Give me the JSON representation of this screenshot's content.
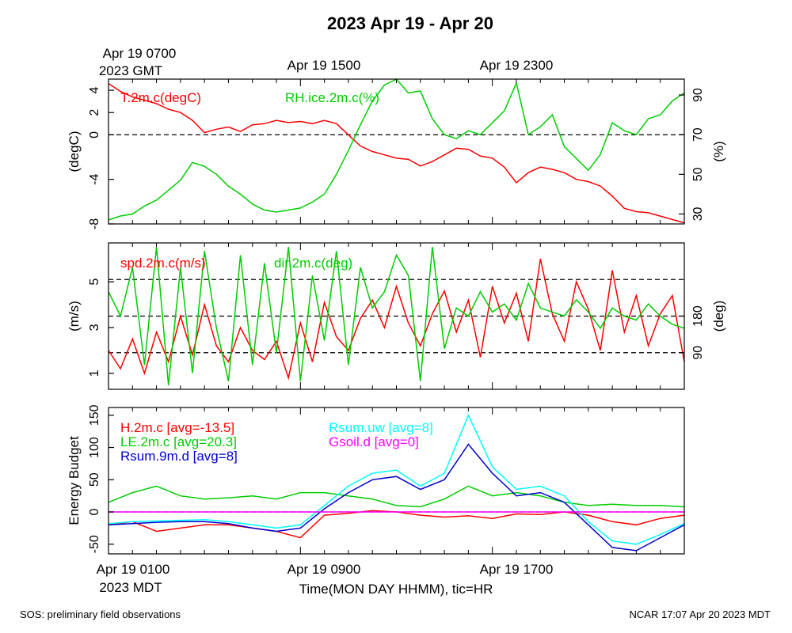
{
  "title": "2023 Apr 19 - Apr 20",
  "colors": {
    "red": "#ff0000",
    "green": "#00cc00",
    "blue": "#0000cc",
    "cyan": "#00ffff",
    "magenta": "#ff00ff"
  },
  "top_time_labels": {
    "first_line1": "Apr 19 0700",
    "first_line2": "2023 GMT",
    "second": "Apr 19 1500",
    "third": "Apr 19 2300"
  },
  "bottom_time_labels": {
    "first": "Apr 19 0100",
    "first_line2": "2023 MDT",
    "second": "Apr 19 0900",
    "third": "Apr 19 1700"
  },
  "xlabel": "Time(MON DAY HHMM), tic=HR",
  "footer": {
    "left": "SOS: preliminary field observations",
    "right": "NCAR 17:07 Apr 20 2023 MDT"
  },
  "chart_data": [
    {
      "type": "line",
      "panel": "temperature-humidity",
      "x_unit": "hours since Apr 19 0100 MDT",
      "xlim": [
        0,
        24
      ],
      "left_axis": {
        "label": "(degC)",
        "ticks": [
          "4",
          "2",
          "0",
          "-4",
          "-8"
        ],
        "tick_values": [
          4,
          2,
          0,
          -4,
          -8
        ],
        "ylim": [
          -8,
          5
        ]
      },
      "right_axis": {
        "label": "(%)",
        "ticks": [
          "90",
          "70",
          "50",
          "30"
        ],
        "tick_values": [
          90,
          70,
          50,
          30
        ],
        "ylim": [
          25,
          98
        ]
      },
      "reference_lines": [
        {
          "axis": "left",
          "value": 0
        }
      ],
      "series": [
        {
          "name": "T.2m.c(degC)",
          "axis": "left",
          "color": "red",
          "x": [
            0,
            0.5,
            1,
            1.5,
            2,
            2.5,
            3,
            3.5,
            4,
            4.5,
            5,
            5.5,
            6,
            6.5,
            7,
            7.5,
            8,
            8.5,
            9,
            9.5,
            10,
            10.5,
            11,
            11.5,
            12,
            12.5,
            13,
            13.5,
            14,
            14.5,
            15,
            15.5,
            16,
            16.5,
            17,
            17.5,
            18,
            18.5,
            19,
            19.5,
            20,
            20.5,
            21,
            21.5,
            22,
            22.5,
            23,
            23.5,
            24
          ],
          "values": [
            4.6,
            3.9,
            3.4,
            3.1,
            2.8,
            2.3,
            2.0,
            1.3,
            0.2,
            0.5,
            0.7,
            0.3,
            0.9,
            1.0,
            1.3,
            1.1,
            1.2,
            1.0,
            1.3,
            1.0,
            0.0,
            -1.0,
            -1.5,
            -1.8,
            -2.1,
            -2.2,
            -2.8,
            -2.4,
            -1.8,
            -1.2,
            -1.3,
            -1.9,
            -2.1,
            -2.9,
            -4.3,
            -3.4,
            -2.9,
            -3.1,
            -3.4,
            -4.0,
            -4.2,
            -4.6,
            -5.5,
            -6.6,
            -6.9,
            -7.0,
            -7.3,
            -7.6,
            -7.9
          ]
        },
        {
          "name": "RH.ice.2m.c(%)",
          "axis": "right",
          "color": "green",
          "x": [
            0,
            0.5,
            1,
            1.5,
            2,
            2.5,
            3,
            3.5,
            4,
            4.5,
            5,
            5.5,
            6,
            6.5,
            7,
            7.5,
            8,
            8.5,
            9,
            9.5,
            10,
            10.5,
            11,
            11.5,
            12,
            12.5,
            13,
            13.5,
            14,
            14.5,
            15,
            15.5,
            16,
            16.5,
            17,
            17.5,
            18,
            18.5,
            19,
            19.5,
            20,
            20.5,
            21,
            21.5,
            22,
            22.5,
            23,
            23.5,
            24
          ],
          "values": [
            27,
            29,
            30,
            34,
            37,
            42,
            47,
            56,
            54,
            50,
            44,
            40,
            35,
            32,
            31,
            32,
            33,
            36,
            40,
            50,
            62,
            75,
            87,
            95,
            98,
            91,
            92,
            78,
            70,
            68,
            72,
            70,
            76,
            82,
            96,
            70,
            74,
            80,
            64,
            58,
            52,
            60,
            76,
            72,
            70,
            78,
            80,
            87,
            91
          ]
        }
      ]
    },
    {
      "type": "line",
      "panel": "wind",
      "x_unit": "hours since Apr 19 0100 MDT",
      "xlim": [
        0,
        24
      ],
      "left_axis": {
        "label": "(m/s)",
        "ticks": [
          "5",
          "3",
          "1"
        ],
        "tick_values": [
          5,
          3,
          1
        ],
        "ylim": [
          0.3,
          6.7
        ]
      },
      "right_axis": {
        "label": "(deg)",
        "ticks": [
          "180",
          "90"
        ],
        "tick_values": [
          180,
          90
        ],
        "ylim": [
          0,
          360
        ]
      },
      "reference_lines": [
        {
          "axis": "right",
          "value": 90
        },
        {
          "axis": "right",
          "value": 180
        },
        {
          "axis": "right",
          "value": 270
        }
      ],
      "series": [
        {
          "name": "spd.2m.c(m/s)",
          "axis": "left",
          "color": "red",
          "x": [
            0,
            0.5,
            1,
            1.5,
            2,
            2.5,
            3,
            3.5,
            4,
            4.5,
            5,
            5.5,
            6,
            6.5,
            7,
            7.5,
            8,
            8.5,
            9,
            9.5,
            10,
            10.5,
            11,
            11.5,
            12,
            12.5,
            13,
            13.5,
            14,
            14.5,
            15,
            15.5,
            16,
            16.5,
            17,
            17.5,
            18,
            18.5,
            19,
            19.5,
            20,
            20.5,
            21,
            21.5,
            22,
            22.5,
            23,
            23.5,
            24
          ],
          "values": [
            2.0,
            1.2,
            2.5,
            1.0,
            2.8,
            1.5,
            3.5,
            1.8,
            4.0,
            2.2,
            1.5,
            3.0,
            2.0,
            1.6,
            2.4,
            0.8,
            3.2,
            1.5,
            4.1,
            2.6,
            2.0,
            3.4,
            4.2,
            3.0,
            4.8,
            3.2,
            2.2,
            3.6,
            4.6,
            2.8,
            4.2,
            1.7,
            4.8,
            3.2,
            4.5,
            2.4,
            6.0,
            3.6,
            2.4,
            5.0,
            3.8,
            2.0,
            5.5,
            2.8,
            4.4,
            2.2,
            3.6,
            4.4,
            1.5
          ]
        },
        {
          "name": "dir.2m.c(deg)",
          "axis": "right",
          "color": "green",
          "x": [
            0,
            0.5,
            1,
            1.5,
            2,
            2.5,
            3,
            3.5,
            4,
            4.5,
            5,
            5.5,
            6,
            6.5,
            7,
            7.5,
            8,
            8.5,
            9,
            9.5,
            10,
            10.5,
            11,
            11.5,
            12,
            12.5,
            13,
            13.5,
            14,
            14.5,
            15,
            15.5,
            16,
            16.5,
            17,
            17.5,
            18,
            18.5,
            19,
            19.5,
            20,
            20.5,
            21,
            21.5,
            22,
            22.5,
            23,
            23.5,
            24
          ],
          "values": [
            240,
            180,
            300,
            60,
            350,
            10,
            300,
            40,
            340,
            150,
            20,
            330,
            60,
            310,
            90,
            350,
            20,
            280,
            120,
            340,
            60,
            300,
            200,
            240,
            330,
            280,
            20,
            350,
            100,
            200,
            180,
            240,
            190,
            210,
            170,
            260,
            200,
            190,
            180,
            220,
            190,
            150,
            200,
            180,
            170,
            210,
            180,
            160,
            150
          ]
        }
      ]
    },
    {
      "type": "line",
      "panel": "energy-budget",
      "x_unit": "hours since Apr 19 0100 MDT",
      "xlim": [
        0,
        24
      ],
      "ylabel": "Energy Budget",
      "left_axis": {
        "label": "Energy Budget",
        "ticks": [
          "150",
          "100",
          "50",
          "0",
          "-50"
        ],
        "tick_values": [
          150,
          100,
          50,
          0,
          -50
        ],
        "ylim": [
          -65,
          162
        ]
      },
      "reference_lines": [
        {
          "axis": "left",
          "value": 0
        }
      ],
      "series": [
        {
          "name": "H.2m.c [avg=-13.5]",
          "color": "red",
          "x": [
            0,
            1,
            2,
            3,
            4,
            5,
            6,
            7,
            8,
            9,
            10,
            11,
            12,
            13,
            14,
            15,
            16,
            17,
            18,
            19,
            20,
            21,
            22,
            23,
            24
          ],
          "values": [
            -20,
            -15,
            -30,
            -25,
            -20,
            -20,
            -25,
            -30,
            -40,
            -5,
            -2,
            2,
            0,
            -5,
            -8,
            -6,
            -10,
            -3,
            -4,
            0,
            -5,
            -15,
            -20,
            -10,
            -5
          ]
        },
        {
          "name": "LE.2m.c [avg=20.3]",
          "color": "green",
          "x": [
            0,
            1,
            2,
            3,
            4,
            5,
            6,
            7,
            8,
            9,
            10,
            11,
            12,
            13,
            14,
            15,
            16,
            17,
            18,
            19,
            20,
            21,
            22,
            23,
            24
          ],
          "values": [
            15,
            30,
            40,
            25,
            20,
            22,
            25,
            20,
            30,
            30,
            25,
            20,
            10,
            8,
            20,
            40,
            25,
            30,
            25,
            15,
            10,
            12,
            10,
            10,
            8
          ]
        },
        {
          "name": "Rsum.9m.d [avg=8]",
          "color": "blue",
          "x": [
            0,
            1,
            2,
            3,
            4,
            5,
            6,
            7,
            8,
            9,
            10,
            11,
            12,
            13,
            14,
            15,
            16,
            17,
            18,
            19,
            20,
            21,
            22,
            23,
            24
          ],
          "values": [
            -20,
            -18,
            -16,
            -15,
            -15,
            -18,
            -25,
            -30,
            -25,
            5,
            30,
            50,
            55,
            35,
            50,
            105,
            60,
            25,
            30,
            15,
            -20,
            -55,
            -60,
            -40,
            -20
          ]
        },
        {
          "name": "Rsum.uw [avg=8]",
          "color": "cyan",
          "x": [
            0,
            1,
            2,
            3,
            4,
            5,
            6,
            7,
            8,
            9,
            10,
            11,
            12,
            13,
            14,
            15,
            16,
            17,
            18,
            19,
            20,
            21,
            22,
            23,
            24
          ],
          "values": [
            -18,
            -15,
            -14,
            -13,
            -12,
            -15,
            -20,
            -25,
            -20,
            10,
            40,
            60,
            65,
            40,
            60,
            150,
            70,
            35,
            40,
            25,
            -15,
            -45,
            -50,
            -35,
            -18
          ]
        },
        {
          "name": "Gsoil.d [avg=0]",
          "color": "magenta",
          "x": [
            0,
            24
          ],
          "values": [
            0,
            0
          ]
        }
      ]
    }
  ]
}
